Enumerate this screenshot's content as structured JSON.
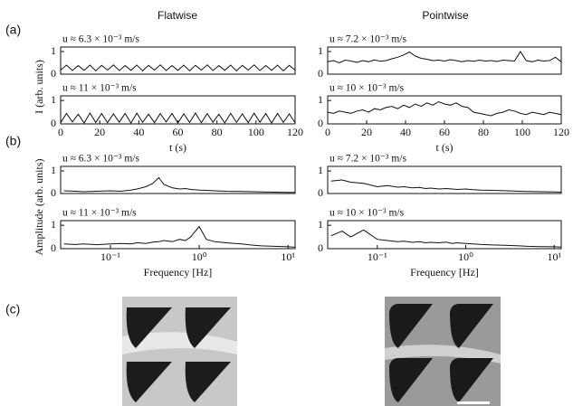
{
  "figure": {
    "panel_labels": [
      "(a)",
      "(b)",
      "(c)"
    ],
    "columns": [
      "Flatwise",
      "Pointwise"
    ],
    "ylabel_a": "I (arb. units)",
    "ylabel_b": "Amplitude (arb. units)"
  },
  "chart_data": [
    {
      "type": "line",
      "annotation": "u ≈ 6.3 × 10⁻³ m/s",
      "xlim": [
        0,
        120
      ],
      "ylim": [
        0,
        1.2
      ],
      "yticks": [
        0,
        1
      ],
      "color": "#111111",
      "x": [
        0,
        3,
        6,
        9,
        12,
        15,
        18,
        21,
        24,
        27,
        30,
        33,
        36,
        39,
        42,
        45,
        48,
        51,
        54,
        57,
        60,
        63,
        66,
        69,
        72,
        75,
        78,
        81,
        84,
        87,
        90,
        93,
        96,
        99,
        102,
        105,
        108,
        111,
        114,
        117,
        120
      ],
      "values": [
        0.18,
        0.4,
        0.16,
        0.38,
        0.17,
        0.4,
        0.15,
        0.39,
        0.18,
        0.41,
        0.16,
        0.38,
        0.17,
        0.4,
        0.15,
        0.39,
        0.18,
        0.41,
        0.16,
        0.38,
        0.17,
        0.4,
        0.15,
        0.39,
        0.18,
        0.41,
        0.16,
        0.38,
        0.17,
        0.4,
        0.15,
        0.39,
        0.18,
        0.41,
        0.16,
        0.38,
        0.17,
        0.4,
        0.15,
        0.39,
        0.18
      ]
    },
    {
      "type": "line",
      "annotation": "u ≈ 7.2 × 10⁻³ m/s",
      "xlim": [
        0,
        120
      ],
      "ylim": [
        0,
        1.2
      ],
      "yticks": [
        0,
        1
      ],
      "color": "#111111",
      "x": [
        0,
        3,
        6,
        9,
        12,
        15,
        18,
        21,
        24,
        27,
        30,
        33,
        36,
        39,
        42,
        45,
        48,
        51,
        54,
        57,
        60,
        63,
        66,
        69,
        72,
        75,
        78,
        81,
        84,
        87,
        90,
        93,
        96,
        99,
        102,
        105,
        108,
        111,
        114,
        117,
        120
      ],
      "values": [
        0.55,
        0.6,
        0.5,
        0.62,
        0.58,
        0.52,
        0.6,
        0.55,
        0.63,
        0.57,
        0.6,
        0.68,
        0.75,
        0.85,
        0.98,
        0.8,
        0.7,
        0.66,
        0.6,
        0.62,
        0.58,
        0.64,
        0.6,
        0.55,
        0.6,
        0.57,
        0.62,
        0.58,
        0.6,
        0.56,
        0.62,
        0.6,
        0.58,
        1.0,
        0.6,
        0.55,
        0.62,
        0.58,
        0.6,
        0.75,
        0.55
      ]
    },
    {
      "type": "line",
      "annotation": "u ≈ 11 × 10⁻³ m/s",
      "xlim": [
        0,
        120
      ],
      "ylim": [
        0,
        1.2
      ],
      "yticks": [
        0,
        1
      ],
      "xticks": [
        0,
        20,
        40,
        60,
        80,
        100,
        120
      ],
      "xlabel": "t (s)",
      "color": "#111111",
      "x": [
        0,
        3,
        6,
        9,
        12,
        15,
        18,
        21,
        24,
        27,
        30,
        33,
        36,
        39,
        42,
        45,
        48,
        51,
        54,
        57,
        60,
        63,
        66,
        69,
        72,
        75,
        78,
        81,
        84,
        87,
        90,
        93,
        96,
        99,
        102,
        105,
        108,
        111,
        114,
        117,
        120
      ],
      "values": [
        0.05,
        0.45,
        0.08,
        0.42,
        0.04,
        0.46,
        0.06,
        0.44,
        0.05,
        0.43,
        0.07,
        0.45,
        0.04,
        0.46,
        0.06,
        0.42,
        0.05,
        0.44,
        0.08,
        0.45,
        0.04,
        0.43,
        0.06,
        0.46,
        0.05,
        0.44,
        0.07,
        0.42,
        0.04,
        0.45,
        0.06,
        0.43,
        0.05,
        0.46,
        0.07,
        0.44,
        0.04,
        0.45,
        0.06,
        0.43,
        0.05
      ]
    },
    {
      "type": "line",
      "annotation": "u ≈ 10 × 10⁻³ m/s",
      "xlim": [
        0,
        120
      ],
      "ylim": [
        0,
        1.2
      ],
      "yticks": [
        0,
        1
      ],
      "xticks": [
        0,
        20,
        40,
        60,
        80,
        100,
        120
      ],
      "xlabel": "t (s)",
      "color": "#111111",
      "x": [
        0,
        3,
        6,
        9,
        12,
        15,
        18,
        21,
        24,
        27,
        30,
        33,
        36,
        39,
        42,
        45,
        48,
        51,
        54,
        57,
        60,
        63,
        66,
        69,
        72,
        75,
        78,
        81,
        84,
        87,
        90,
        93,
        96,
        99,
        102,
        105,
        108,
        111,
        114,
        117,
        120
      ],
      "values": [
        0.5,
        0.45,
        0.55,
        0.5,
        0.45,
        0.55,
        0.6,
        0.5,
        0.65,
        0.6,
        0.7,
        0.75,
        0.65,
        0.8,
        0.7,
        0.85,
        0.75,
        0.9,
        0.8,
        0.95,
        0.85,
        0.8,
        0.9,
        0.75,
        0.7,
        0.5,
        0.45,
        0.4,
        0.35,
        0.45,
        0.5,
        0.6,
        0.55,
        0.45,
        0.4,
        0.5,
        0.45,
        0.4,
        0.5,
        0.45,
        0.4
      ]
    },
    {
      "type": "line",
      "annotation": "u ≈ 6.3 × 10⁻³ m/s",
      "xscale": "log",
      "xlim": [
        0.0275,
        12
      ],
      "ylim": [
        0,
        1.2
      ],
      "yticks": [
        0,
        1
      ],
      "color": "#111111",
      "x": [
        0.03,
        0.04,
        0.05,
        0.07,
        0.1,
        0.13,
        0.17,
        0.2,
        0.25,
        0.3,
        0.35,
        0.4,
        0.5,
        0.6,
        0.7,
        0.8,
        1,
        1.2,
        1.5,
        2,
        3,
        4,
        5,
        7,
        10,
        12
      ],
      "values": [
        0.12,
        0.1,
        0.08,
        0.1,
        0.12,
        0.1,
        0.15,
        0.2,
        0.3,
        0.45,
        0.7,
        0.4,
        0.25,
        0.2,
        0.22,
        0.18,
        0.15,
        0.14,
        0.12,
        0.1,
        0.09,
        0.08,
        0.07,
        0.06,
        0.05,
        0.05
      ]
    },
    {
      "type": "line",
      "annotation": "u ≈ 7.2 × 10⁻³ m/s",
      "xscale": "log",
      "xlim": [
        0.0275,
        12
      ],
      "ylim": [
        0,
        1.2
      ],
      "yticks": [
        0,
        1
      ],
      "color": "#111111",
      "x": [
        0.03,
        0.04,
        0.05,
        0.07,
        0.1,
        0.13,
        0.17,
        0.2,
        0.25,
        0.3,
        0.35,
        0.4,
        0.5,
        0.6,
        0.7,
        0.8,
        1,
        1.2,
        1.5,
        2,
        3,
        4,
        5,
        7,
        10,
        12
      ],
      "values": [
        0.55,
        0.6,
        0.5,
        0.45,
        0.3,
        0.35,
        0.28,
        0.3,
        0.25,
        0.27,
        0.22,
        0.24,
        0.2,
        0.22,
        0.2,
        0.18,
        0.2,
        0.17,
        0.15,
        0.14,
        0.12,
        0.1,
        0.09,
        0.08,
        0.07,
        0.06
      ]
    },
    {
      "type": "line",
      "annotation": "u ≈ 11 × 10⁻³ m/s",
      "xscale": "log",
      "xlim": [
        0.0275,
        12
      ],
      "ylim": [
        0,
        1.2
      ],
      "yticks": [
        0,
        1
      ],
      "xticks": [
        {
          "value": 0.1,
          "label": "10⁻¹"
        },
        {
          "value": 1,
          "label": "10⁰"
        },
        {
          "value": 10,
          "label": "10¹"
        }
      ],
      "xlabel": "Frequency [Hz]",
      "color": "#111111",
      "x": [
        0.03,
        0.04,
        0.05,
        0.07,
        0.1,
        0.13,
        0.17,
        0.2,
        0.25,
        0.3,
        0.35,
        0.4,
        0.5,
        0.6,
        0.7,
        0.8,
        1,
        1.2,
        1.5,
        2,
        3,
        4,
        5,
        7,
        10,
        12
      ],
      "values": [
        0.2,
        0.18,
        0.2,
        0.17,
        0.2,
        0.22,
        0.2,
        0.25,
        0.22,
        0.28,
        0.3,
        0.35,
        0.3,
        0.4,
        0.35,
        0.5,
        0.95,
        0.4,
        0.3,
        0.25,
        0.2,
        0.15,
        0.12,
        0.1,
        0.08,
        0.06
      ]
    },
    {
      "type": "line",
      "annotation": "u ≈ 10 × 10⁻³ m/s",
      "xscale": "log",
      "xlim": [
        0.0275,
        12
      ],
      "ylim": [
        0,
        1.2
      ],
      "yticks": [
        0,
        1
      ],
      "xticks": [
        {
          "value": 0.1,
          "label": "10⁻¹"
        },
        {
          "value": 1,
          "label": "10⁰"
        },
        {
          "value": 10,
          "label": "10¹"
        }
      ],
      "xlabel": "Frequency [Hz]",
      "color": "#111111",
      "x": [
        0.03,
        0.04,
        0.05,
        0.07,
        0.1,
        0.13,
        0.17,
        0.2,
        0.25,
        0.3,
        0.35,
        0.4,
        0.5,
        0.6,
        0.7,
        0.8,
        1,
        1.2,
        1.5,
        2,
        3,
        4,
        5,
        7,
        10,
        12
      ],
      "values": [
        0.55,
        0.75,
        0.5,
        0.8,
        0.4,
        0.35,
        0.3,
        0.32,
        0.27,
        0.3,
        0.25,
        0.27,
        0.25,
        0.28,
        0.22,
        0.25,
        0.22,
        0.2,
        0.18,
        0.16,
        0.14,
        0.12,
        0.1,
        0.09,
        0.08,
        0.07
      ]
    }
  ]
}
